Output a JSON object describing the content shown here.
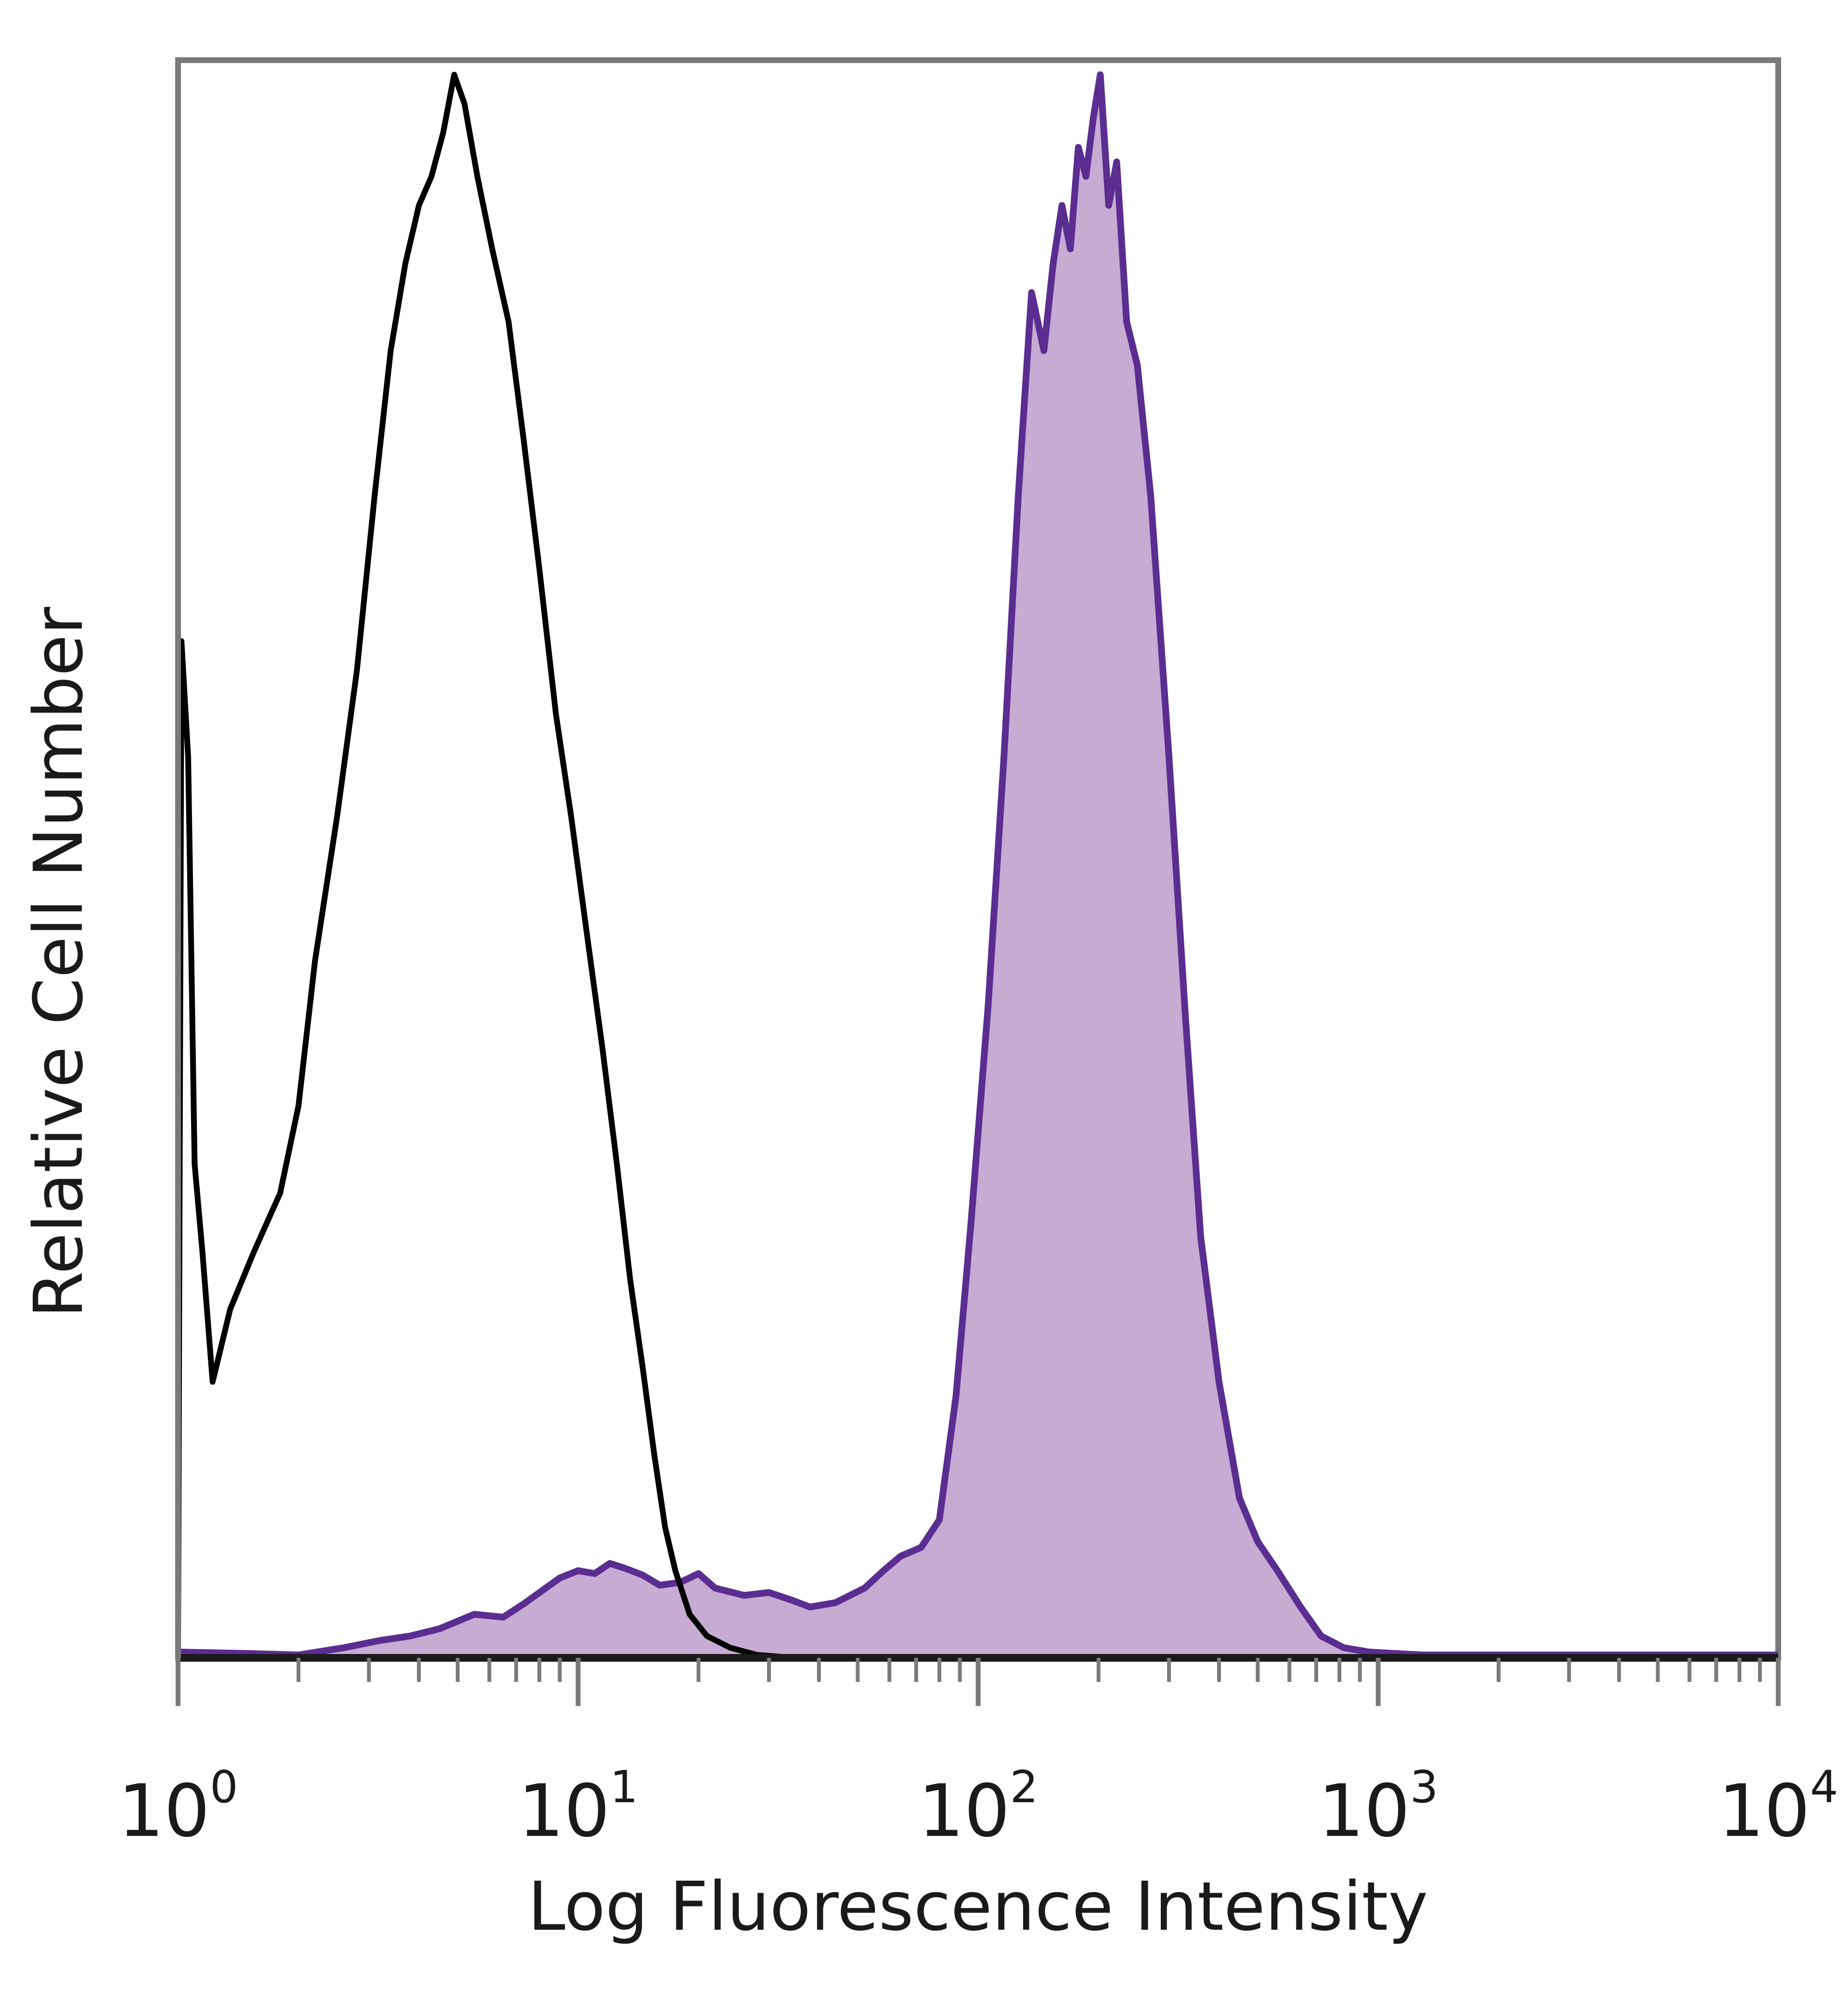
{
  "chart_data": {
    "type": "area",
    "xlabel": "Log Fluorescence Intensity",
    "ylabel": "Relative Cell Number",
    "x_scale": "log",
    "xlim": [
      1,
      10000
    ],
    "ylim": [
      0,
      1.1
    ],
    "y_ticks_labeled": false,
    "x_ticks": [
      {
        "value": 1,
        "base": "10",
        "exp": "0"
      },
      {
        "value": 10,
        "base": "10",
        "exp": "1"
      },
      {
        "value": 100,
        "base": "10",
        "exp": "2"
      },
      {
        "value": 1000,
        "base": "10",
        "exp": "3"
      },
      {
        "value": 10000,
        "base": "10",
        "exp": "4"
      }
    ],
    "series": [
      {
        "style": "outline",
        "color": "#000000",
        "points": [
          [
            1.0,
            0.0
          ],
          [
            1.02,
            0.7
          ],
          [
            1.06,
            0.62
          ],
          [
            1.1,
            0.34
          ],
          [
            1.15,
            0.28
          ],
          [
            1.22,
            0.19
          ],
          [
            1.35,
            0.24
          ],
          [
            1.55,
            0.28
          ],
          [
            1.8,
            0.32
          ],
          [
            2.0,
            0.38
          ],
          [
            2.2,
            0.48
          ],
          [
            2.5,
            0.58
          ],
          [
            2.8,
            0.68
          ],
          [
            3.1,
            0.8
          ],
          [
            3.4,
            0.9
          ],
          [
            3.7,
            0.96
          ],
          [
            4.0,
            1.0
          ],
          [
            4.3,
            1.02
          ],
          [
            4.6,
            1.05
          ],
          [
            4.9,
            1.09
          ],
          [
            5.2,
            1.07
          ],
          [
            5.6,
            1.02
          ],
          [
            6.1,
            0.97
          ],
          [
            6.7,
            0.92
          ],
          [
            7.3,
            0.84
          ],
          [
            8.0,
            0.75
          ],
          [
            8.8,
            0.65
          ],
          [
            9.6,
            0.58
          ],
          [
            10.5,
            0.5
          ],
          [
            11.5,
            0.42
          ],
          [
            12.5,
            0.34
          ],
          [
            13.5,
            0.26
          ],
          [
            14.5,
            0.2
          ],
          [
            15.5,
            0.14
          ],
          [
            16.5,
            0.09
          ],
          [
            17.5,
            0.06
          ],
          [
            19.0,
            0.03
          ],
          [
            21.0,
            0.015
          ],
          [
            24.0,
            0.007
          ],
          [
            28.0,
            0.002
          ],
          [
            35.0,
            0.0
          ]
        ]
      },
      {
        "style": "filled",
        "color": "#5b2d91",
        "fill": "#c7abd3",
        "points": [
          [
            1.0,
            0.004
          ],
          [
            1.5,
            0.003
          ],
          [
            2.0,
            0.002
          ],
          [
            2.6,
            0.007
          ],
          [
            3.2,
            0.012
          ],
          [
            3.8,
            0.015
          ],
          [
            4.5,
            0.02
          ],
          [
            5.5,
            0.03
          ],
          [
            6.5,
            0.028
          ],
          [
            7.3,
            0.037
          ],
          [
            8.2,
            0.047
          ],
          [
            9.0,
            0.055
          ],
          [
            10.0,
            0.06
          ],
          [
            11.0,
            0.058
          ],
          [
            12.0,
            0.065
          ],
          [
            13.0,
            0.062
          ],
          [
            14.5,
            0.057
          ],
          [
            16.0,
            0.05
          ],
          [
            18.0,
            0.052
          ],
          [
            20.0,
            0.058
          ],
          [
            22.0,
            0.048
          ],
          [
            26.0,
            0.043
          ],
          [
            30.0,
            0.045
          ],
          [
            34.0,
            0.04
          ],
          [
            38.0,
            0.035
          ],
          [
            44.0,
            0.038
          ],
          [
            52.0,
            0.048
          ],
          [
            58.0,
            0.06
          ],
          [
            64.0,
            0.07
          ],
          [
            72.0,
            0.076
          ],
          [
            80.0,
            0.095
          ],
          [
            88.0,
            0.18
          ],
          [
            96.0,
            0.3
          ],
          [
            106.0,
            0.45
          ],
          [
            116.0,
            0.62
          ],
          [
            126.0,
            0.8
          ],
          [
            136.0,
            0.94
          ],
          [
            146.0,
            0.9
          ],
          [
            154.0,
            0.96
          ],
          [
            162.0,
            1.0
          ],
          [
            170.0,
            0.97
          ],
          [
            178.0,
            1.04
          ],
          [
            186.0,
            1.02
          ],
          [
            194.0,
            1.06
          ],
          [
            202.0,
            1.09
          ],
          [
            212.0,
            1.0
          ],
          [
            222.0,
            1.03
          ],
          [
            235.0,
            0.92
          ],
          [
            250.0,
            0.89
          ],
          [
            270.0,
            0.8
          ],
          [
            300.0,
            0.62
          ],
          [
            330.0,
            0.44
          ],
          [
            360.0,
            0.29
          ],
          [
            400.0,
            0.19
          ],
          [
            450.0,
            0.11
          ],
          [
            500.0,
            0.08
          ],
          [
            560.0,
            0.06
          ],
          [
            640.0,
            0.035
          ],
          [
            720.0,
            0.015
          ],
          [
            820.0,
            0.007
          ],
          [
            950.0,
            0.004
          ],
          [
            1100.0,
            0.003
          ],
          [
            1300.0,
            0.002
          ],
          [
            2000.0,
            0.002
          ],
          [
            4000.0,
            0.002
          ],
          [
            10000.0,
            0.002
          ]
        ]
      }
    ]
  }
}
